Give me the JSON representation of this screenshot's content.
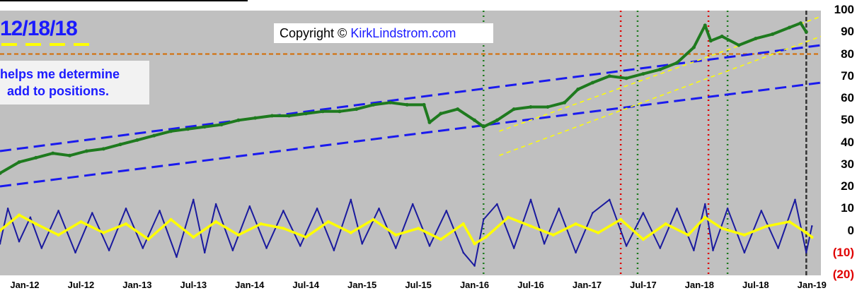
{
  "header": {
    "date_label": "12/18/18",
    "copyright_prefix": "Copyright © ",
    "copyright_url": "KirkLindstrom.com",
    "note_line1": "helps me determine",
    "note_line2": "add to positions."
  },
  "colors": {
    "background": "#c0c0c0",
    "price": "#1e7a1e",
    "oscillator": "#1a1a9e",
    "smoothed": "#ffff00",
    "channel": "#1a1aee",
    "reference_line": "#d46a00",
    "buy_marker": "#1e7a1e",
    "sell_marker": "#e00000"
  },
  "chart_data": {
    "type": "line",
    "y_ticks": [
      "100",
      "90",
      "80",
      "70",
      "60",
      "50",
      "40",
      "30",
      "20",
      "10",
      "0",
      "(10)",
      "(20)"
    ],
    "ylim": [
      -20,
      100
    ],
    "x_ticks": [
      "Jan-12",
      "Jul-12",
      "Jan-13",
      "Jul-13",
      "Jan-14",
      "Jul-14",
      "Jan-15",
      "Jul-15",
      "Jan-16",
      "Jul-16",
      "Jan-17",
      "Jul-17",
      "Jan-18",
      "Jul-18",
      "Jan-19"
    ],
    "x_tick_dates": [
      2012.0,
      2012.5,
      2013.0,
      2013.5,
      2014.0,
      2014.5,
      2015.0,
      2015.5,
      2016.0,
      2016.5,
      2017.0,
      2017.5,
      2018.0,
      2018.5,
      2019.0
    ],
    "xlim": [
      2011.78,
      2019.08
    ],
    "reference_level": 80,
    "price_series": {
      "x": [
        2011.78,
        2011.95,
        2012.1,
        2012.25,
        2012.4,
        2012.55,
        2012.7,
        2012.85,
        2013.0,
        2013.15,
        2013.3,
        2013.45,
        2013.6,
        2013.75,
        2013.9,
        2014.05,
        2014.2,
        2014.35,
        2014.5,
        2014.65,
        2014.8,
        2014.95,
        2015.1,
        2015.25,
        2015.4,
        2015.55,
        2015.6,
        2015.7,
        2015.85,
        2016.0,
        2016.08,
        2016.2,
        2016.35,
        2016.5,
        2016.65,
        2016.8,
        2016.92,
        2017.05,
        2017.2,
        2017.35,
        2017.5,
        2017.65,
        2017.8,
        2017.95,
        2018.05,
        2018.1,
        2018.2,
        2018.35,
        2018.5,
        2018.65,
        2018.8,
        2018.9,
        2018.95
      ],
      "values": [
        26,
        31,
        33,
        35,
        34,
        36,
        37,
        39,
        41,
        43,
        45,
        46,
        47,
        48,
        50,
        51,
        52,
        52,
        53,
        54,
        54,
        55,
        57,
        58,
        57,
        57,
        49,
        53,
        55,
        50,
        47,
        50,
        55,
        56,
        56,
        58,
        64,
        67,
        70,
        69,
        71,
        73,
        76,
        83,
        93,
        86,
        88,
        84,
        87,
        89,
        92,
        94,
        90
      ]
    },
    "oscillator_series": {
      "x": [
        2011.78,
        2011.85,
        2011.95,
        2012.05,
        2012.15,
        2012.3,
        2012.45,
        2012.6,
        2012.75,
        2012.9,
        2013.05,
        2013.2,
        2013.35,
        2013.5,
        2013.6,
        2013.7,
        2013.85,
        2014.0,
        2014.15,
        2014.3,
        2014.45,
        2014.6,
        2014.75,
        2014.9,
        2015.0,
        2015.15,
        2015.3,
        2015.45,
        2015.6,
        2015.75,
        2015.9,
        2016.0,
        2016.08,
        2016.2,
        2016.35,
        2016.5,
        2016.62,
        2016.75,
        2016.9,
        2017.05,
        2017.2,
        2017.35,
        2017.5,
        2017.65,
        2017.8,
        2017.95,
        2018.05,
        2018.12,
        2018.25,
        2018.4,
        2018.55,
        2018.7,
        2018.85,
        2018.95,
        2019.0
      ],
      "values": [
        -6,
        10,
        -5,
        6,
        -8,
        9,
        -10,
        8,
        -9,
        10,
        -8,
        9,
        -12,
        14,
        -10,
        12,
        -9,
        11,
        -8,
        9,
        -7,
        10,
        -9,
        14,
        -6,
        10,
        -8,
        12,
        -7,
        9,
        -10,
        -16,
        5,
        12,
        -8,
        14,
        -6,
        10,
        -10,
        8,
        14,
        -7,
        8,
        -8,
        10,
        -9,
        12,
        -9,
        10,
        -10,
        9,
        -8,
        14,
        -10,
        2
      ]
    },
    "smoothed_series": {
      "x": [
        2011.78,
        2011.95,
        2012.1,
        2012.3,
        2012.5,
        2012.7,
        2012.9,
        2013.1,
        2013.3,
        2013.5,
        2013.7,
        2013.9,
        2014.1,
        2014.3,
        2014.5,
        2014.7,
        2014.9,
        2015.1,
        2015.3,
        2015.5,
        2015.7,
        2015.9,
        2016.0,
        2016.1,
        2016.3,
        2016.5,
        2016.7,
        2016.9,
        2017.1,
        2017.3,
        2017.5,
        2017.7,
        2017.9,
        2018.05,
        2018.2,
        2018.4,
        2018.6,
        2018.8,
        2018.95,
        2019.0
      ],
      "values": [
        0,
        7,
        3,
        -2,
        4,
        -1,
        3,
        -4,
        5,
        -3,
        4,
        -2,
        3,
        1,
        -3,
        4,
        -1,
        5,
        -2,
        1,
        -4,
        3,
        -6,
        -3,
        6,
        2,
        -2,
        3,
        -1,
        5,
        -4,
        3,
        -2,
        6,
        1,
        -2,
        2,
        4,
        -1,
        -3
      ]
    },
    "channel_lines": [
      {
        "x": [
          2011.78,
          2019.08
        ],
        "values": [
          36,
          84
        ]
      },
      {
        "x": [
          2011.78,
          2019.08
        ],
        "values": [
          20,
          67
        ]
      }
    ],
    "trend_lines": [
      {
        "x": [
          2016.22,
          2019.08
        ],
        "values": [
          45,
          97
        ]
      },
      {
        "x": [
          2016.22,
          2019.08
        ],
        "values": [
          34,
          88
        ]
      }
    ],
    "marker_lines": [
      {
        "x": 2016.08,
        "kind": "buy"
      },
      {
        "x": 2017.3,
        "kind": "sell"
      },
      {
        "x": 2017.45,
        "kind": "buy"
      },
      {
        "x": 2018.08,
        "kind": "sell"
      },
      {
        "x": 2018.25,
        "kind": "buy"
      },
      {
        "x": 2018.95,
        "kind": "current"
      }
    ]
  }
}
